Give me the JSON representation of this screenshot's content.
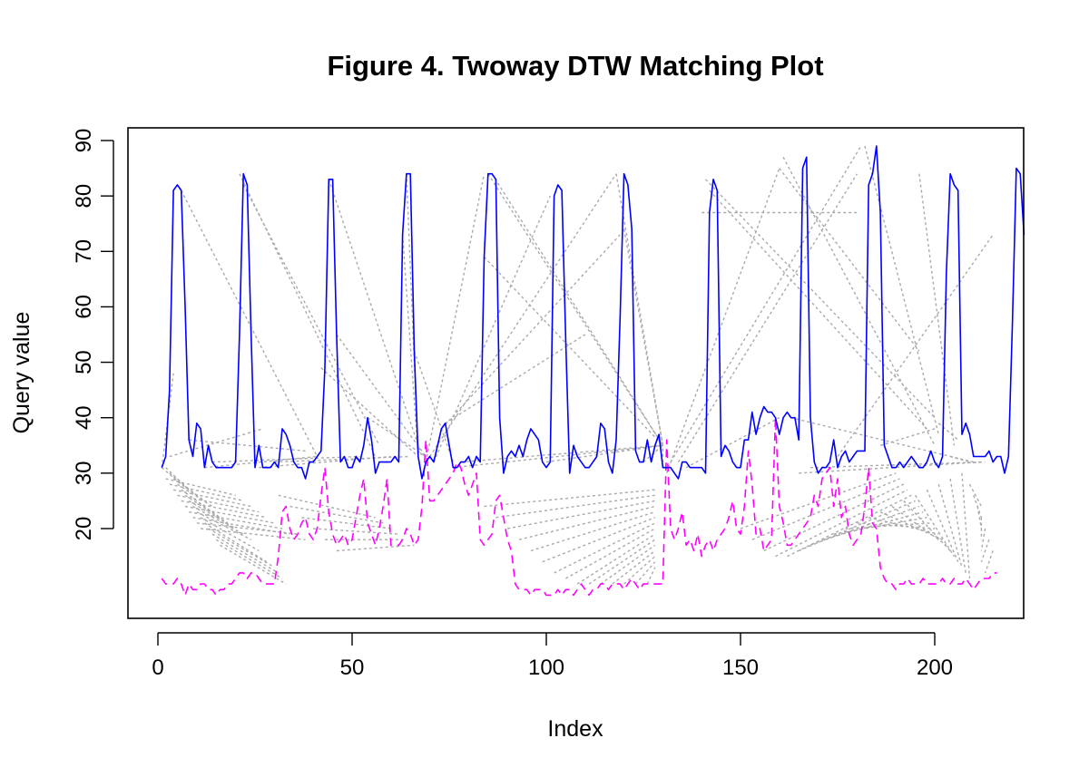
{
  "chart_data": {
    "type": "line",
    "title": "Figure 4. Twoway DTW Matching Plot",
    "xlabel": "Index",
    "ylabel": "Query value",
    "xlim": [
      0,
      218
    ],
    "ylim": [
      5,
      93
    ],
    "x_ticks": [
      0,
      50,
      100,
      150,
      200
    ],
    "y_ticks": [
      20,
      30,
      40,
      50,
      60,
      70,
      80,
      90
    ],
    "grid": false,
    "legend": "none",
    "series": [
      {
        "role": "query",
        "color": "#0000ff",
        "line_style": "solid",
        "x_start": 1,
        "values": [
          31,
          33,
          45,
          81,
          82,
          81,
          60,
          36,
          33,
          39,
          38,
          31,
          35,
          32,
          31,
          31,
          31,
          31,
          31,
          32,
          55,
          84,
          82,
          55,
          31,
          35,
          31,
          31,
          31,
          32,
          31,
          38,
          37,
          35,
          32,
          31,
          31,
          29,
          32,
          32,
          33,
          34,
          49,
          83,
          83,
          55,
          32,
          33,
          31,
          31,
          33,
          32,
          35,
          40,
          36,
          30,
          32,
          32,
          32,
          32,
          33,
          32,
          73,
          84,
          84,
          52,
          33,
          29,
          32,
          33,
          32,
          35,
          38,
          39,
          35,
          31,
          31,
          32,
          32,
          33,
          31,
          33,
          32,
          69,
          84,
          84,
          83,
          40,
          30,
          33,
          34,
          33,
          35,
          33,
          36,
          38,
          37,
          36,
          32,
          31,
          32,
          80,
          82,
          81,
          54,
          30,
          35,
          33,
          32,
          31,
          31,
          32,
          33,
          39,
          38,
          32,
          30,
          36,
          58,
          84,
          82,
          74,
          34,
          32,
          32,
          36,
          32,
          35,
          37,
          31,
          31,
          31,
          30,
          29,
          32,
          32,
          31,
          31,
          31,
          31,
          30,
          77,
          83,
          81,
          33,
          35,
          34,
          32,
          31,
          31,
          36,
          36,
          41,
          37,
          40,
          42,
          41,
          41,
          40,
          37,
          40,
          41,
          40,
          40,
          36,
          85,
          87,
          40,
          32,
          30,
          31,
          31,
          32,
          36,
          31,
          33,
          34,
          32,
          33,
          34,
          34,
          34,
          82,
          84,
          89,
          77,
          35,
          33,
          31,
          31,
          32,
          31,
          32,
          33,
          32,
          31,
          31,
          32,
          34,
          32,
          31,
          33,
          66,
          84,
          82,
          81,
          37,
          39,
          37,
          33,
          33,
          33,
          33,
          34,
          32,
          33,
          33,
          30,
          33,
          57,
          85,
          84,
          73
        ],
        "derived": "reconstructed from the figure"
      },
      {
        "role": "reference",
        "color": "#ff00ff",
        "line_style": "dashed",
        "x_start": 1,
        "values": [
          11,
          10,
          10,
          10,
          11,
          10,
          8,
          10,
          9,
          9,
          10,
          10,
          9,
          9,
          8,
          9,
          9,
          10,
          10,
          11,
          12,
          12,
          11,
          12,
          12,
          11,
          10,
          10,
          10,
          10,
          15,
          23,
          24,
          20,
          18,
          19,
          21,
          22,
          19,
          18,
          20,
          26,
          31,
          23,
          19,
          17,
          18,
          19,
          17,
          18,
          22,
          26,
          29,
          21,
          19,
          17,
          20,
          24,
          29,
          17,
          17,
          17,
          18,
          20,
          19,
          17,
          18,
          24,
          36,
          25,
          25,
          26,
          27,
          28,
          29,
          30,
          32,
          31,
          28,
          26,
          28,
          30,
          18,
          17,
          18,
          19,
          25,
          26,
          22,
          18,
          16,
          10,
          9,
          9,
          9,
          8,
          9,
          9,
          9,
          8,
          8,
          8,
          9,
          8,
          9,
          9,
          8,
          9,
          10,
          9,
          8,
          9,
          9,
          10,
          10,
          9,
          10,
          10,
          10,
          9,
          10,
          11,
          10,
          9,
          10,
          10,
          10,
          10,
          10,
          10,
          36,
          20,
          18,
          20,
          23,
          17,
          18,
          16,
          19,
          15,
          17,
          18,
          16,
          18,
          19,
          20,
          22,
          25,
          20,
          19,
          24,
          34,
          28,
          19,
          20,
          16,
          17,
          18,
          40,
          24,
          21,
          17,
          17,
          18,
          19,
          20,
          21,
          22,
          26,
          24,
          29,
          30,
          31,
          24,
          29,
          22,
          24,
          19,
          17,
          18,
          19,
          24,
          31,
          21,
          20,
          13,
          11,
          10,
          10,
          9,
          10,
          10,
          11,
          10,
          10,
          10,
          11,
          10,
          10,
          10,
          10,
          11,
          10,
          10,
          11,
          10,
          10,
          11,
          10,
          9,
          10,
          11,
          11,
          11,
          12,
          12
        ],
        "derived": "reconstructed from the figure"
      },
      {
        "role": "alignment",
        "color": "#aaaaaa",
        "line_style": "dotted",
        "segments": [
          [
            1,
            31,
            4,
            48
          ],
          [
            3,
            33,
            27,
            38
          ],
          [
            6,
            81,
            41,
            33
          ],
          [
            8,
            36,
            38,
            34
          ],
          [
            12,
            31,
            41,
            33
          ],
          [
            14,
            32,
            52,
            33
          ],
          [
            21,
            84,
            56,
            33
          ],
          [
            22,
            82,
            57,
            35
          ],
          [
            26,
            31,
            60,
            33
          ],
          [
            30,
            32,
            65,
            33
          ],
          [
            42,
            49,
            67,
            33
          ],
          [
            44,
            83,
            68,
            33
          ],
          [
            46,
            55,
            69,
            33
          ],
          [
            54,
            40,
            69,
            33
          ],
          [
            63,
            73,
            67,
            33
          ],
          [
            64,
            84,
            67,
            33
          ],
          [
            66,
            52,
            76,
            32
          ],
          [
            69,
            32,
            84,
            84
          ],
          [
            70,
            33,
            118,
            84
          ],
          [
            71,
            32,
            101,
            80
          ],
          [
            73,
            38,
            119,
            73
          ],
          [
            74,
            39,
            110,
            55
          ],
          [
            76,
            31,
            130,
            35
          ],
          [
            78,
            32,
            130,
            35
          ],
          [
            84,
            69,
            130,
            35
          ],
          [
            85,
            84,
            130,
            35
          ],
          [
            86,
            84,
            130,
            35
          ],
          [
            100,
            32,
            130,
            35
          ],
          [
            118,
            84,
            130,
            35
          ],
          [
            120,
            74,
            130,
            35
          ],
          [
            125,
            32,
            130,
            35
          ],
          [
            130,
            31,
            130,
            35
          ],
          [
            131,
            30,
            160,
            85
          ],
          [
            132,
            32,
            181,
            89
          ],
          [
            134,
            32,
            180,
            84
          ],
          [
            136,
            31,
            160,
            40
          ],
          [
            140,
            77,
            180,
            77
          ],
          [
            141,
            83,
            200,
            40
          ],
          [
            142,
            81,
            198,
            38
          ],
          [
            160,
            85,
            196,
            52
          ],
          [
            161,
            87,
            200,
            35
          ],
          [
            163,
            40,
            210,
            32
          ],
          [
            165,
            30,
            212,
            32
          ],
          [
            168,
            31,
            213,
            32
          ],
          [
            175,
            33,
            215,
            73
          ],
          [
            182,
            89,
            201,
            37
          ],
          [
            186,
            35,
            200,
            38
          ],
          [
            196,
            84,
            205,
            35
          ],
          [
            201,
            39,
            206,
            36
          ],
          [
            204,
            33,
            209,
            32
          ],
          [
            1,
            31,
            6,
            28
          ],
          [
            2,
            31,
            8,
            27
          ],
          [
            3,
            30,
            10,
            26
          ],
          [
            4,
            29,
            12,
            25
          ],
          [
            5,
            28,
            14,
            24
          ],
          [
            6,
            27,
            16,
            22
          ],
          [
            7,
            26,
            18,
            21
          ],
          [
            8,
            25,
            20,
            20
          ],
          [
            9,
            24,
            22,
            19
          ],
          [
            10,
            23,
            24,
            18
          ],
          [
            11,
            22,
            26,
            16
          ],
          [
            12,
            21,
            28,
            14
          ],
          [
            13,
            20,
            30,
            13
          ],
          [
            14,
            19,
            31,
            12
          ],
          [
            15,
            18,
            32,
            11
          ],
          [
            16,
            17,
            33,
            10
          ],
          [
            2,
            29,
            20,
            26
          ],
          [
            3,
            28,
            22,
            25
          ],
          [
            4,
            27,
            24,
            24
          ],
          [
            5,
            26,
            26,
            23
          ],
          [
            6,
            25,
            28,
            22
          ],
          [
            7,
            24,
            30,
            21
          ],
          [
            8,
            23,
            32,
            20
          ],
          [
            9,
            22,
            34,
            19
          ],
          [
            10,
            21,
            36,
            19
          ],
          [
            11,
            20,
            38,
            18
          ],
          [
            31,
            26,
            56,
            22
          ],
          [
            34,
            24,
            58,
            21
          ],
          [
            37,
            22,
            60,
            20
          ],
          [
            40,
            20,
            62,
            19
          ],
          [
            43,
            18,
            64,
            18
          ],
          [
            46,
            16,
            66,
            17
          ],
          [
            84,
            24,
            128,
            27
          ],
          [
            87,
            22,
            128,
            26
          ],
          [
            90,
            20,
            128,
            25
          ],
          [
            93,
            18,
            128,
            24
          ],
          [
            96,
            16,
            128,
            23
          ],
          [
            99,
            14,
            128,
            22
          ],
          [
            102,
            12,
            128,
            21
          ],
          [
            105,
            11,
            128,
            20
          ],
          [
            108,
            10,
            128,
            19
          ],
          [
            111,
            10,
            128,
            18
          ],
          [
            114,
            10,
            128,
            17
          ],
          [
            117,
            10,
            128,
            16
          ],
          [
            120,
            10,
            128,
            15
          ],
          [
            123,
            10,
            128,
            14
          ],
          [
            126,
            10,
            128,
            13
          ],
          [
            150,
            20,
            190,
            30
          ],
          [
            153,
            18,
            191,
            29
          ],
          [
            156,
            16,
            192,
            28
          ],
          [
            159,
            15,
            193,
            27
          ],
          [
            162,
            15,
            194,
            26
          ],
          [
            165,
            16,
            195,
            25
          ],
          [
            168,
            17,
            196,
            24
          ],
          [
            171,
            18,
            197,
            23
          ],
          [
            174,
            19,
            198,
            22
          ],
          [
            177,
            20,
            199,
            21
          ],
          [
            180,
            21,
            200,
            20
          ],
          [
            183,
            22,
            201,
            19
          ],
          [
            186,
            23,
            202,
            18
          ],
          [
            189,
            24,
            203,
            17
          ],
          [
            192,
            25,
            204,
            16
          ],
          [
            195,
            26,
            205,
            15
          ],
          [
            198,
            27,
            206,
            14
          ],
          [
            201,
            28,
            207,
            13
          ],
          [
            204,
            29,
            208,
            12
          ],
          [
            207,
            30,
            209,
            11
          ],
          [
            209,
            28,
            212,
            24
          ],
          [
            210,
            26,
            212,
            22
          ],
          [
            211,
            24,
            212,
            20
          ],
          [
            212,
            22,
            212,
            18
          ],
          [
            213,
            20,
            212,
            16
          ],
          [
            214,
            18,
            212,
            14
          ],
          [
            215,
            16,
            213,
            12
          ]
        ],
        "derived": "reconstructed from the figure"
      }
    ]
  }
}
